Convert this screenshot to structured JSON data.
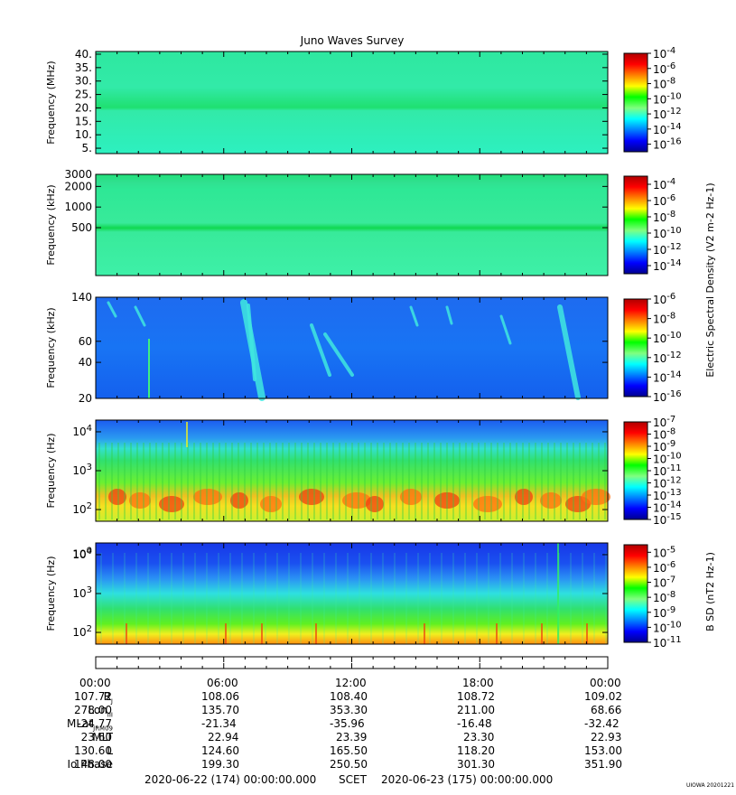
{
  "title": "Juno Waves Survey",
  "colors": {
    "jet": [
      "#00008f",
      "#0000ff",
      "#0080ff",
      "#00ffff",
      "#80ff80",
      "#00ff00",
      "#ffff00",
      "#ff8000",
      "#ff0000",
      "#b00000"
    ]
  },
  "chart_data": [
    {
      "type": "heatmap",
      "name": "panel-1",
      "ylabel": "Frequency (MHz)",
      "y_ticks": [
        "40.",
        "35.",
        "30.",
        "25.",
        "20.",
        "15.",
        "10.",
        "5."
      ],
      "y_scale": "linear",
      "ylim": [
        3,
        41
      ],
      "colorbar_ticks": [
        "10-4",
        "10-6",
        "10-8",
        "10-10",
        "10-12",
        "10-14",
        "10-16"
      ],
      "colorbar_range": [
        -17,
        -4
      ],
      "description_bands": [
        {
          "y": 21,
          "level": "green"
        }
      ],
      "background_level": "light-green"
    },
    {
      "type": "heatmap",
      "name": "panel-2",
      "ylabel": "Frequency (kHz)",
      "y_ticks": [
        "3000",
        "2000",
        "1000",
        "500"
      ],
      "y_scale": "log",
      "ylim": [
        100,
        3000
      ],
      "colorbar_ticks": [
        "10-4",
        "10-6",
        "10-8",
        "10-10",
        "10-12",
        "10-14"
      ],
      "colorbar_range": [
        -15,
        -3
      ],
      "background_level": "light-green"
    },
    {
      "type": "heatmap",
      "name": "panel-3",
      "ylabel": "Frequency (kHz)",
      "y_ticks": [
        "140",
        "100",
        "60",
        "40",
        "20"
      ],
      "y_scale": "log",
      "ylim": [
        20,
        140
      ],
      "colorbar_ticks": [
        "10-6",
        "10-8",
        "10-10",
        "10-12",
        "10-14",
        "10-16"
      ],
      "colorbar_range": [
        -16,
        -6
      ],
      "background_level": "blue"
    },
    {
      "type": "heatmap",
      "name": "panel-4",
      "ylabel": "Frequency (Hz)",
      "y_ticks": [
        "104",
        "103",
        "102"
      ],
      "y_scale": "log",
      "ylim": [
        50,
        20000
      ],
      "colorbar_ticks": [
        "10-7",
        "10-8",
        "10-9",
        "10-10",
        "10-11",
        "10-12",
        "10-13",
        "10-14",
        "10-15"
      ],
      "colorbar_range": [
        -15,
        -7
      ]
    },
    {
      "type": "heatmap",
      "name": "panel-5",
      "ylabel": "Frequency (Hz)",
      "y_ticks": [
        "104",
        "103",
        "102"
      ],
      "y_scale": "log",
      "ylim": [
        50,
        20000
      ],
      "colorbar_ticks": [
        "10-5",
        "10-6",
        "10-7",
        "10-8",
        "10-9",
        "10-10",
        "10-11"
      ],
      "colorbar_range": [
        -11,
        -4.5
      ]
    }
  ],
  "colorbar_labels": {
    "electric": "Electric Spectral Density (V2 m-2 Hz-1)",
    "magnetic": "B SD (nT2 Hz-1)"
  },
  "time_axis": {
    "ticks": [
      "00:00",
      "06:00",
      "12:00",
      "18:00",
      "00:00"
    ]
  },
  "ephemeris": [
    {
      "label": "R",
      "sub": "J",
      "values": [
        "107.72",
        "108.06",
        "108.40",
        "108.72",
        "109.02"
      ]
    },
    {
      "label": "Lon",
      "sub": "III",
      "values": [
        "278.00",
        "135.70",
        "353.30",
        "211.00",
        "68.66"
      ]
    },
    {
      "label": "MLat",
      "sub": "JRM09",
      "values": [
        "-24.77",
        "-21.34",
        "-35.96",
        "-16.48",
        "-32.42"
      ]
    },
    {
      "label": "MLT",
      "sub": "",
      "values": [
        "23.60",
        "22.94",
        "23.39",
        "23.30",
        "22.93"
      ]
    },
    {
      "label": "L",
      "sub": "",
      "values": [
        "130.60",
        "124.60",
        "165.50",
        "118.20",
        "153.00"
      ]
    },
    {
      "label": "Io Phase",
      "sub": "",
      "values": [
        "148.00",
        "199.30",
        "250.50",
        "301.30",
        "351.90"
      ]
    }
  ],
  "footer": {
    "start": "2020-06-22 (174) 00:00:00.000",
    "scet": "SCET",
    "end": "2020-06-23 (175) 00:00:00.000"
  },
  "stamp": "UIOWA 20201221"
}
